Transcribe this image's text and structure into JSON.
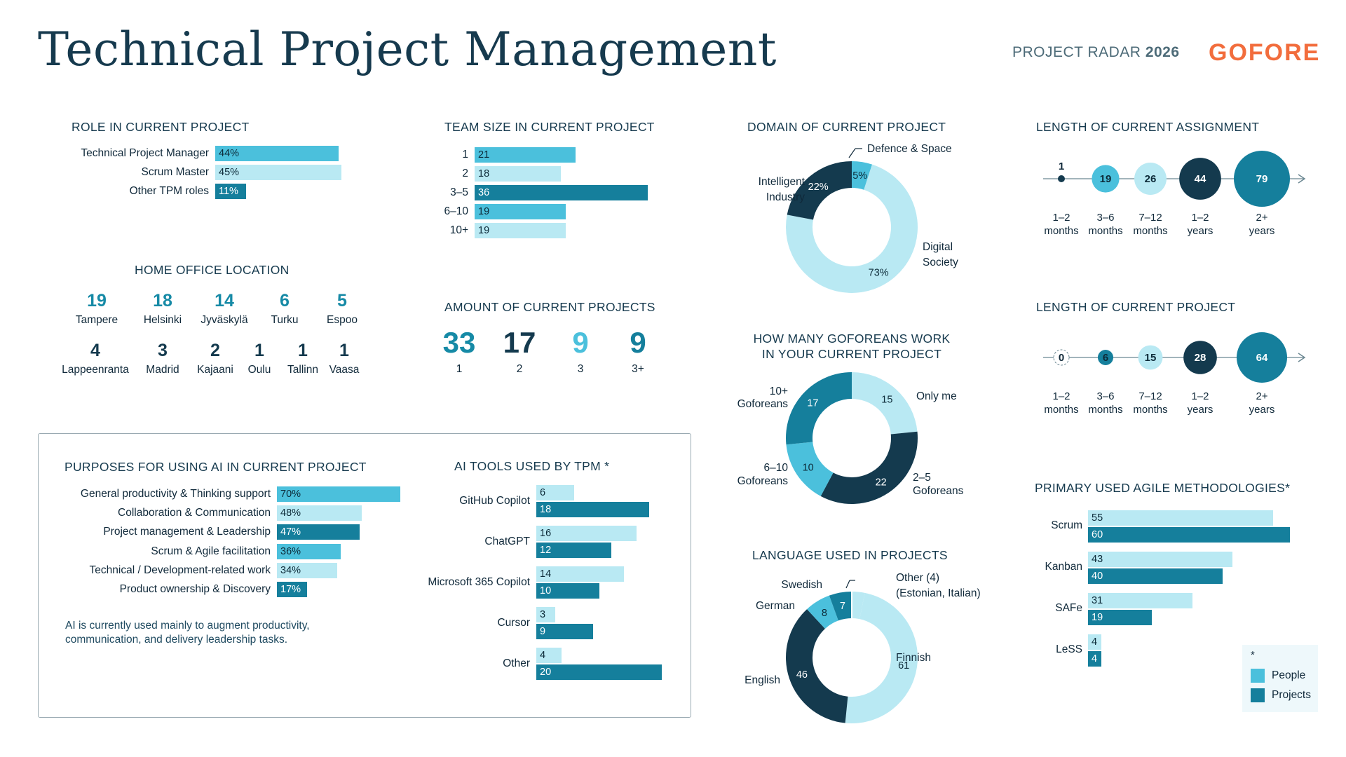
{
  "header": {
    "title": "Technical Project Management",
    "radar_prefix": "PROJECT RADAR",
    "radar_year": "2026",
    "logo": "GOFORE"
  },
  "colors": {
    "mid": "#4bc0dc",
    "light": "#b9e9f3",
    "teal": "#157f9c",
    "navy": "#143a4e",
    "orange": "#f26d3d"
  },
  "role": {
    "title": "ROLE IN CURRENT PROJECT",
    "items": [
      {
        "label": "Technical Project Manager",
        "value": "44%"
      },
      {
        "label": "Scrum Master",
        "value": "45%"
      },
      {
        "label": "Other TPM roles",
        "value": "11%"
      }
    ]
  },
  "team_size": {
    "title": "TEAM SIZE IN CURRENT PROJECT",
    "items": [
      {
        "label": "1",
        "value": "21"
      },
      {
        "label": "2",
        "value": "18"
      },
      {
        "label": "3–5",
        "value": "36"
      },
      {
        "label": "6–10",
        "value": "19"
      },
      {
        "label": "10+",
        "value": "19"
      }
    ]
  },
  "home_office": {
    "title": "HOME OFFICE LOCATION",
    "row1": [
      {
        "num": "19",
        "name": "Tampere"
      },
      {
        "num": "18",
        "name": "Helsinki"
      },
      {
        "num": "14",
        "name": "Jyväskylä"
      },
      {
        "num": "6",
        "name": "Turku"
      },
      {
        "num": "5",
        "name": "Espoo"
      }
    ],
    "row2": [
      {
        "num": "4",
        "name": "Lappeenranta"
      },
      {
        "num": "3",
        "name": "Madrid"
      },
      {
        "num": "2",
        "name": "Kajaani"
      },
      {
        "num": "1",
        "name": "Oulu"
      },
      {
        "num": "1",
        "name": "Tallinn"
      },
      {
        "num": "1",
        "name": "Vaasa"
      }
    ]
  },
  "amount": {
    "title": "AMOUNT OF CURRENT PROJECTS",
    "items": [
      {
        "num": "33",
        "label": "1"
      },
      {
        "num": "17",
        "label": "2"
      },
      {
        "num": "9",
        "label": "3"
      },
      {
        "num": "9",
        "label": "3+"
      }
    ]
  },
  "domain": {
    "title": "DOMAIN OF CURRENT PROJECT",
    "label_defence": "Defence & Space",
    "label_industry_1": "Intelligent",
    "label_industry_2": "Industry",
    "label_digital_1": "Digital",
    "label_digital_2": "Society"
  },
  "goforeans": {
    "title_1": "HOW MANY GOFOREANS WORK",
    "title_2": "IN YOUR CURRENT PROJECT",
    "label_only": "Only me",
    "label_25_1": "2–5",
    "label_25_2": "Goforeans",
    "label_610_1": "6–10",
    "label_610_2": "Goforeans",
    "label_10p_1": "10+",
    "label_10p_2": "Goforeans"
  },
  "language": {
    "title": "LANGUAGE USED IN PROJECTS",
    "label_finnish": "Finnish",
    "label_english": "English",
    "label_german": "German",
    "label_swedish": "Swedish",
    "label_other_1": "Other (4)",
    "label_other_2": "(Estonian, Italian)"
  },
  "assignment": {
    "title": "LENGTH OF CURRENT ASSIGNMENT",
    "items": [
      {
        "value": "1",
        "l1": "1–2",
        "l2": "months"
      },
      {
        "value": "19",
        "l1": "3–6",
        "l2": "months"
      },
      {
        "value": "26",
        "l1": "7–12",
        "l2": "months"
      },
      {
        "value": "44",
        "l1": "1–2",
        "l2": "years"
      },
      {
        "value": "79",
        "l1": "2+",
        "l2": "years"
      }
    ]
  },
  "project_length": {
    "title": "LENGTH OF CURRENT PROJECT",
    "items": [
      {
        "value": "0",
        "l1": "1–2",
        "l2": "months"
      },
      {
        "value": "6",
        "l1": "3–6",
        "l2": "months"
      },
      {
        "value": "15",
        "l1": "7–12",
        "l2": "months"
      },
      {
        "value": "28",
        "l1": "1–2",
        "l2": "years"
      },
      {
        "value": "64",
        "l1": "2+",
        "l2": "years"
      }
    ]
  },
  "agile": {
    "title": "PRIMARY USED AGILE METHODOLOGIES*",
    "items": [
      {
        "label": "Scrum",
        "people": "55",
        "projects": "60"
      },
      {
        "label": "Kanban",
        "people": "43",
        "projects": "40"
      },
      {
        "label": "SAFe",
        "people": "31",
        "projects": "19"
      },
      {
        "label": "LeSS",
        "people": "4",
        "projects": "4"
      }
    ],
    "legend_mark": "*",
    "legend_people": "People",
    "legend_projects": "Projects"
  },
  "ai_purposes": {
    "title": "PURPOSES FOR USING AI IN CURRENT PROJECT",
    "items": [
      {
        "label": "General productivity & Thinking support",
        "value": "70%"
      },
      {
        "label": "Collaboration & Communication",
        "value": "48%"
      },
      {
        "label": "Project management & Leadership",
        "value": "47%"
      },
      {
        "label": "Scrum & Agile facilitation",
        "value": "36%"
      },
      {
        "label": "Technical / Development-related work",
        "value": "34%"
      },
      {
        "label": "Product ownership & Discovery",
        "value": "17%"
      }
    ],
    "note_1": "AI is currently used mainly to augment productivity,",
    "note_2": "communication, and delivery leadership tasks."
  },
  "ai_tools": {
    "title": "AI TOOLS USED BY TPM *",
    "items": [
      {
        "label": "GitHub Copilot",
        "people": "6",
        "projects": "18"
      },
      {
        "label": "ChatGPT",
        "people": "16",
        "projects": "12"
      },
      {
        "label": "Microsoft 365 Copilot",
        "people": "14",
        "projects": "10"
      },
      {
        "label": "Cursor",
        "people": "3",
        "projects": "9"
      },
      {
        "label": "Other",
        "people": "4",
        "projects": "20"
      }
    ]
  },
  "chart_data": [
    {
      "type": "bar",
      "title": "ROLE IN CURRENT PROJECT",
      "categories": [
        "Technical Project Manager",
        "Scrum Master",
        "Other TPM roles"
      ],
      "values": [
        44,
        45,
        11
      ]
    },
    {
      "type": "bar",
      "title": "TEAM SIZE IN CURRENT PROJECT",
      "categories": [
        "1",
        "2",
        "3–5",
        "6–10",
        "10+"
      ],
      "values": [
        21,
        18,
        36,
        19,
        19
      ]
    },
    {
      "type": "table",
      "title": "HOME OFFICE LOCATION",
      "categories": [
        "Tampere",
        "Helsinki",
        "Jyväskylä",
        "Turku",
        "Espoo",
        "Lappeenranta",
        "Madrid",
        "Kajaani",
        "Oulu",
        "Tallinn",
        "Vaasa"
      ],
      "values": [
        19,
        18,
        14,
        6,
        5,
        4,
        3,
        2,
        1,
        1,
        1
      ]
    },
    {
      "type": "table",
      "title": "AMOUNT OF CURRENT PROJECTS",
      "categories": [
        "1",
        "2",
        "3",
        "3+"
      ],
      "values": [
        33,
        17,
        9,
        9
      ]
    },
    {
      "type": "pie",
      "title": "DOMAIN OF CURRENT PROJECT",
      "categories": [
        "Defence & Space",
        "Digital Society",
        "Intelligent Industry"
      ],
      "values": [
        5,
        73,
        22
      ],
      "labels": [
        "5%",
        "73%",
        "22%"
      ]
    },
    {
      "type": "pie",
      "title": "HOW MANY GOFOREANS WORK IN YOUR CURRENT PROJECT",
      "categories": [
        "Only me",
        "2–5 Goforeans",
        "6–10 Goforeans",
        "10+ Goforeans"
      ],
      "values": [
        15,
        22,
        10,
        17
      ]
    },
    {
      "type": "pie",
      "title": "LANGUAGE USED IN PROJECTS",
      "categories": [
        "Other (4)",
        "Finnish",
        "English",
        "German",
        "Swedish"
      ],
      "values": [
        4,
        61,
        46,
        8,
        7
      ]
    },
    {
      "type": "scatter",
      "title": "LENGTH OF CURRENT ASSIGNMENT",
      "categories": [
        "1–2 months",
        "3–6 months",
        "7–12 months",
        "1–2 years",
        "2+ years"
      ],
      "values": [
        1,
        19,
        26,
        44,
        79
      ]
    },
    {
      "type": "scatter",
      "title": "LENGTH OF CURRENT PROJECT",
      "categories": [
        "1–2 months",
        "3–6 months",
        "7–12 months",
        "1–2 years",
        "2+ years"
      ],
      "values": [
        0,
        6,
        15,
        28,
        64
      ]
    },
    {
      "type": "bar",
      "title": "PRIMARY USED AGILE METHODOLOGIES*",
      "categories": [
        "Scrum",
        "Kanban",
        "SAFe",
        "LeSS"
      ],
      "series": [
        {
          "name": "People",
          "values": [
            55,
            43,
            31,
            4
          ]
        },
        {
          "name": "Projects",
          "values": [
            60,
            40,
            19,
            4
          ]
        }
      ]
    },
    {
      "type": "bar",
      "title": "PURPOSES FOR USING AI IN CURRENT PROJECT",
      "categories": [
        "General productivity & Thinking support",
        "Collaboration & Communication",
        "Project management & Leadership",
        "Scrum & Agile facilitation",
        "Technical / Development-related work",
        "Product ownership & Discovery"
      ],
      "values": [
        70,
        48,
        47,
        36,
        34,
        17
      ]
    },
    {
      "type": "bar",
      "title": "AI TOOLS USED BY TPM *",
      "categories": [
        "GitHub Copilot",
        "ChatGPT",
        "Microsoft 365 Copilot",
        "Cursor",
        "Other"
      ],
      "series": [
        {
          "name": "People",
          "values": [
            6,
            16,
            14,
            3,
            4
          ]
        },
        {
          "name": "Projects",
          "values": [
            18,
            12,
            10,
            9,
            20
          ]
        }
      ]
    }
  ]
}
